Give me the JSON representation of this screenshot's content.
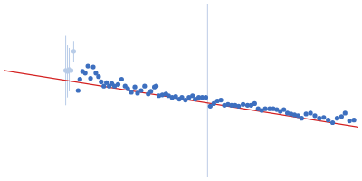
{
  "chart_data": {
    "type": "scatter",
    "xlim": [
      0,
      400
    ],
    "ylim": [
      0,
      200
    ],
    "grid": false,
    "tick_labels": false,
    "series": [
      {
        "color": "#b8cce8",
        "marker": "circle",
        "x": [
          70,
          72,
          74,
          76,
          79
        ],
        "values": [
          123,
          122,
          124,
          123,
          145
        ],
        "errors": [
          40,
          30,
          25,
          15,
          12
        ]
      },
      {
        "color": "#3d6fbf",
        "marker": "circle",
        "x": [
          84,
          86,
          89,
          92,
          95,
          98,
          101,
          104,
          107,
          110,
          113,
          116,
          119,
          122,
          125,
          129,
          133,
          137,
          140,
          144,
          148,
          151,
          155,
          159,
          163,
          166,
          170,
          172,
          175,
          179,
          183,
          186,
          190,
          194,
          198,
          201,
          205,
          209,
          213,
          216,
          220,
          224,
          228,
          233,
          237,
          241,
          245,
          249,
          253,
          257,
          261,
          265,
          270,
          275,
          279,
          283,
          287,
          291,
          295,
          300,
          304,
          308,
          312,
          316,
          320,
          324,
          328,
          332,
          336,
          341,
          346,
          351,
          356,
          361,
          366,
          371,
          376,
          381,
          385,
          390,
          395
        ],
        "values": [
          100,
          113,
          122,
          120,
          128,
          114,
          127,
          120,
          116,
          110,
          105,
          109,
          105,
          108,
          105,
          107,
          113,
          105,
          102,
          98,
          104,
          97,
          100,
          105,
          96,
          99,
          104,
          105,
          94,
          95,
          96,
          94,
          92,
          93,
          90,
          92,
          89,
          92,
          94,
          90,
          92,
          92,
          92,
          82,
          85,
          88,
          89,
          83,
          84,
          83,
          83,
          82,
          84,
          83,
          83,
          85,
          79,
          77,
          79,
          79,
          79,
          78,
          76,
          78,
          74,
          73,
          72,
          71,
          68,
          73,
          74,
          71,
          68,
          69,
          66,
          63,
          68,
          70,
          74,
          65,
          66
        ]
      },
      {
        "type": "line",
        "color": "#d42020",
        "line_style": "solid",
        "x": [
          0,
          400
        ],
        "values": [
          123,
          58
        ]
      },
      {
        "type": "line",
        "color": "#c8d4ea",
        "line_style": "solid",
        "x": [
          230,
          230
        ],
        "values": [
          0,
          200
        ]
      }
    ]
  }
}
